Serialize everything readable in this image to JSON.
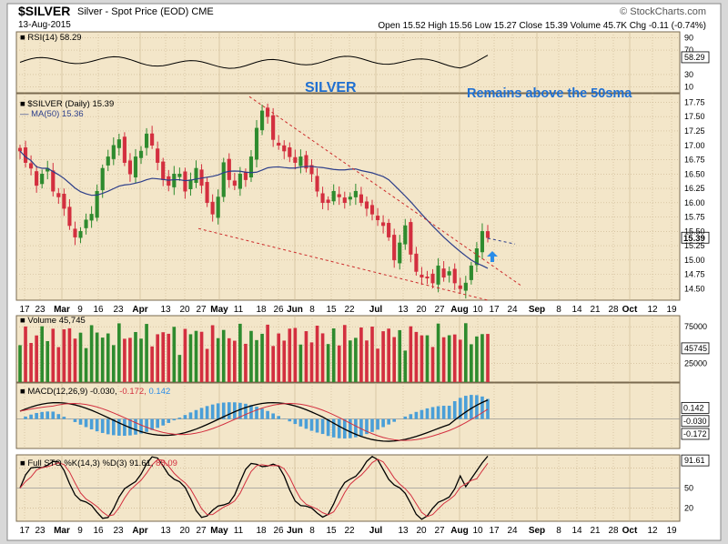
{
  "header": {
    "symbol": "$SILVER",
    "description": "Silver - Spot Price (EOD)",
    "exchange": "CME",
    "date": "13-Aug-2015",
    "stats": "Open 15.52 High 15.56 Low 15.27 Close 15.39 Volume 45.7K Chg -0.11 (-0.74%)",
    "chg_color": "#cc0000",
    "watermark": "© StockCharts.com"
  },
  "annotations": {
    "title": "SILVER",
    "note": "Remains above the 50sma",
    "color": "#1f6fd1"
  },
  "panels": {
    "rsi": {
      "label": "RSI(14) 58.29",
      "ticks": [
        "90",
        "70",
        "58.29",
        "30",
        "10"
      ]
    },
    "price": {
      "label1": "$SILVER (Daily) 15.39",
      "label2": "MA(50) 15.36",
      "last": "15.39",
      "ticks": [
        "17.75",
        "17.50",
        "17.25",
        "17.00",
        "16.75",
        "16.50",
        "16.25",
        "16.00",
        "15.75",
        "15.50",
        "15.25",
        "15.00",
        "14.75",
        "14.50"
      ]
    },
    "volume": {
      "label": "Volume 45,745",
      "ticks": [
        "75000",
        "45745",
        "25000"
      ]
    },
    "macd": {
      "label": "MACD(12,26,9) -0.030,",
      "v2": "-0.172,",
      "v3": "0.142",
      "ticks": [
        "0.142",
        "-0.030",
        "-0.172"
      ]
    },
    "sto": {
      "label": "Full STO %K(14,3) %D(3) 91.61,",
      "v2": "88.09",
      "ticks": [
        "91.61",
        "50",
        "20"
      ]
    }
  },
  "xaxis": {
    "labels": [
      "17",
      "23",
      "Mar",
      "9",
      "16",
      "23",
      "Apr",
      "13",
      "20",
      "27",
      "May",
      "11",
      "18",
      "26",
      "Jun",
      "8",
      "15",
      "22",
      "Jul",
      "13",
      "20",
      "27",
      "Aug",
      "10",
      "17",
      "24",
      "Sep",
      "8",
      "14",
      "21",
      "28",
      "Oct",
      "12",
      "19"
    ]
  },
  "colors": {
    "up": "#2e8b2e",
    "down": "#d32f3f",
    "ma": "#2c3e8a",
    "grid": "#c9b48e",
    "panel": "#f3e6c9"
  },
  "chart_data": {
    "type": "candlestick",
    "title": "$SILVER (Daily)",
    "ylim": [
      14.3,
      17.9
    ],
    "ma50_last": 15.36,
    "close_series": [
      16.9,
      16.7,
      16.6,
      16.3,
      16.5,
      16.6,
      16.2,
      16.1,
      15.9,
      15.6,
      15.4,
      15.5,
      15.7,
      15.8,
      16.2,
      16.6,
      16.8,
      17.0,
      17.1,
      16.7,
      16.5,
      16.8,
      16.9,
      17.2,
      17.0,
      16.7,
      16.4,
      16.3,
      16.5,
      16.5,
      16.2,
      16.4,
      16.6,
      16.3,
      16.0,
      15.8,
      16.1,
      16.7,
      16.4,
      16.3,
      16.5,
      16.4,
      16.8,
      17.3,
      17.6,
      17.5,
      17.1,
      17.0,
      16.9,
      16.8,
      16.7,
      16.8,
      16.6,
      16.5,
      16.2,
      16.0,
      16.0,
      16.2,
      16.1,
      16.0,
      16.1,
      16.2,
      16.0,
      15.9,
      15.8,
      15.7,
      15.6,
      15.4,
      15.0,
      15.3,
      15.6,
      15.1,
      14.8,
      14.7,
      14.7,
      14.6,
      14.9,
      14.7,
      14.8,
      14.6,
      14.5,
      14.6,
      14.9,
      15.2,
      15.5,
      15.39
    ]
  }
}
